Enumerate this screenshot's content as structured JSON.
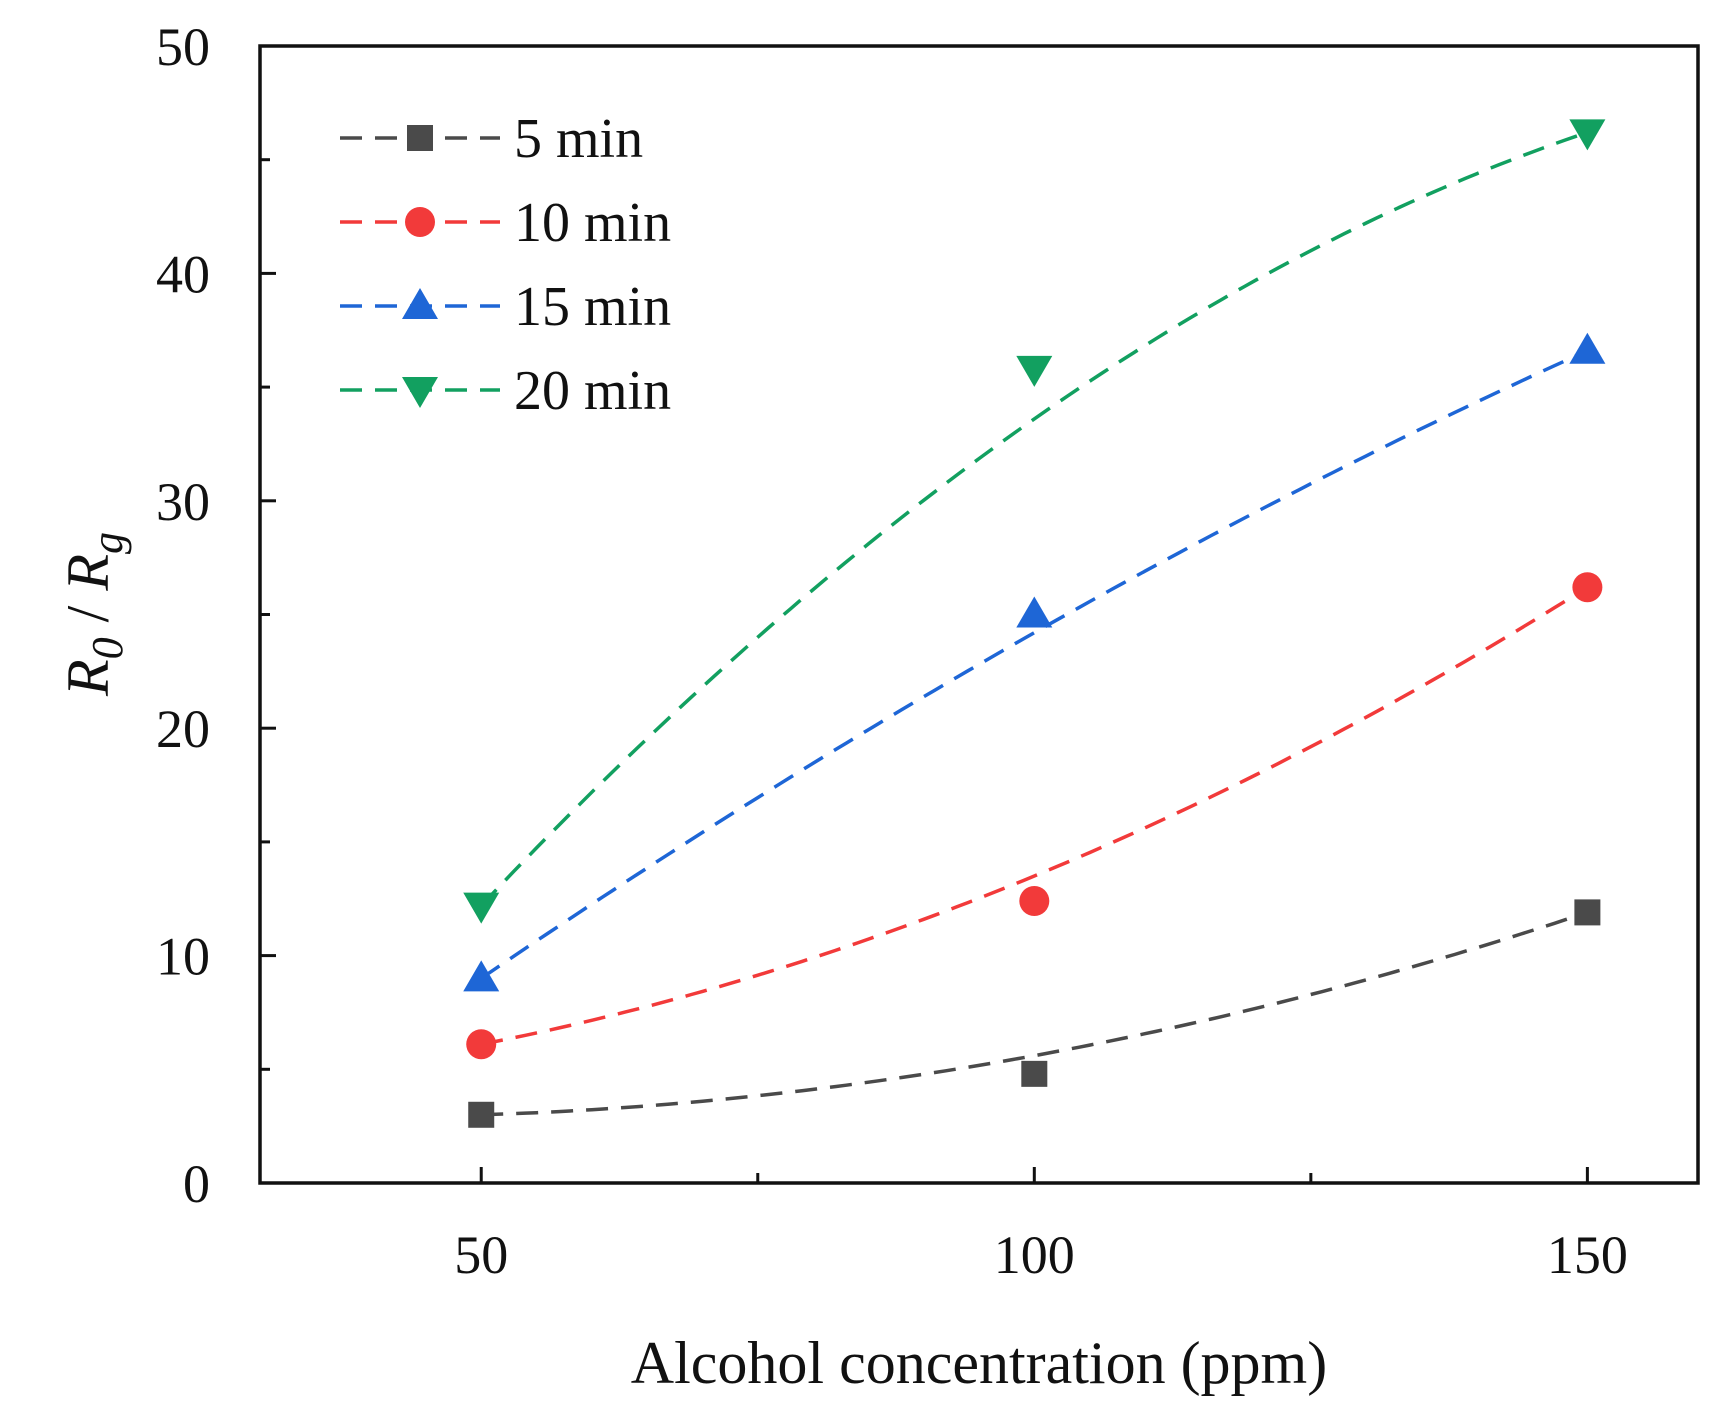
{
  "chart_data": {
    "type": "scatter",
    "title": "",
    "xlabel": "Alcohol concentration (ppm)",
    "ylabel": {
      "R": "R",
      "sub0": "0",
      "slash": " / ",
      "R2": "R",
      "subg": "g"
    },
    "xlim": [
      30,
      160
    ],
    "ylim": [
      0,
      50
    ],
    "x_ticks": [
      50,
      100,
      150
    ],
    "x_ticks_minor": [
      75,
      125
    ],
    "y_ticks": [
      0,
      10,
      20,
      30,
      40,
      50
    ],
    "y_ticks_minor": [
      5,
      15,
      25,
      35,
      45
    ],
    "x": [
      50,
      100,
      150
    ],
    "legend_position": "top-left",
    "series": [
      {
        "name": "5 min",
        "marker": "square",
        "color": "#4a4a4a",
        "values": [
          3.0,
          4.8,
          11.9
        ],
        "fit": [
          3.0,
          5.6,
          11.9
        ]
      },
      {
        "name": "10 min",
        "marker": "circle",
        "color": "#f23a3a",
        "values": [
          6.1,
          12.4,
          26.2
        ],
        "fit": [
          6.1,
          13.5,
          26.2
        ]
      },
      {
        "name": "15 min",
        "marker": "triangle-up",
        "color": "#1e66d6",
        "values": [
          9.0,
          25.0,
          36.6
        ],
        "fit": [
          9.0,
          24.2,
          36.6
        ]
      },
      {
        "name": "20 min",
        "marker": "triangle-down",
        "color": "#12a060",
        "values": [
          12.2,
          35.8,
          46.2
        ],
        "fit": [
          12.2,
          33.6,
          46.2
        ]
      }
    ]
  }
}
